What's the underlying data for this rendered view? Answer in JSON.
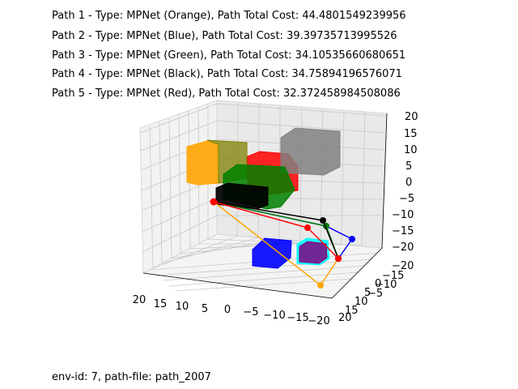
{
  "header_lines": [
    "Path 1 - Type: MPNet (Orange), Path Total Cost: 44.4801549239956",
    "Path 2 - Type: MPNet (Blue), Path Total Cost: 39.39735713995526",
    "Path 3 - Type: MPNet (Green), Path Total Cost: 34.10535660680651",
    "Path 4 - Type: MPNet (Black), Path Total Cost: 34.75894196576071",
    "Path 5 - Type: MPNet (Red), Path Total Cost: 32.372458984508086"
  ],
  "footer": "env-id: 7, path-file: path_2007",
  "chart_data": {
    "type": "scatter3d",
    "axes": {
      "x": {
        "range": [
          -20,
          20
        ],
        "ticks": [
          "20",
          "15",
          "10",
          "5",
          "0",
          "−5",
          "−10",
          "−15",
          "−20"
        ]
      },
      "y": {
        "range": [
          -20,
          20
        ],
        "ticks": [
          "−20",
          "−15",
          "−10",
          "−5",
          "0",
          "5",
          "10",
          "15",
          "20"
        ]
      },
      "z": {
        "range": [
          -20,
          20
        ],
        "ticks": [
          "20",
          "15",
          "10",
          "5",
          "0",
          "−5",
          "−10",
          "−15",
          "−20"
        ]
      }
    },
    "grid": true,
    "obstacles": [
      {
        "color": "#ffa500",
        "label": "orange block"
      },
      {
        "color": "#808000",
        "label": "olive block"
      },
      {
        "color": "#ff0000",
        "label": "red block"
      },
      {
        "color": "#808080",
        "label": "gray block"
      },
      {
        "color": "#008000",
        "label": "green block"
      },
      {
        "color": "#000000",
        "label": "black block"
      },
      {
        "color": "#0000ff",
        "label": "blue block"
      },
      {
        "color": "#00ffff",
        "label": "cyan block"
      },
      {
        "color": "#800080",
        "label": "purple block"
      }
    ],
    "series": [
      {
        "name": "Path 1",
        "color": "#ffa500"
      },
      {
        "name": "Path 2",
        "color": "#0000ff"
      },
      {
        "name": "Path 3",
        "color": "#008000"
      },
      {
        "name": "Path 4",
        "color": "#000000"
      },
      {
        "name": "Path 5",
        "color": "#ff0000"
      }
    ]
  }
}
